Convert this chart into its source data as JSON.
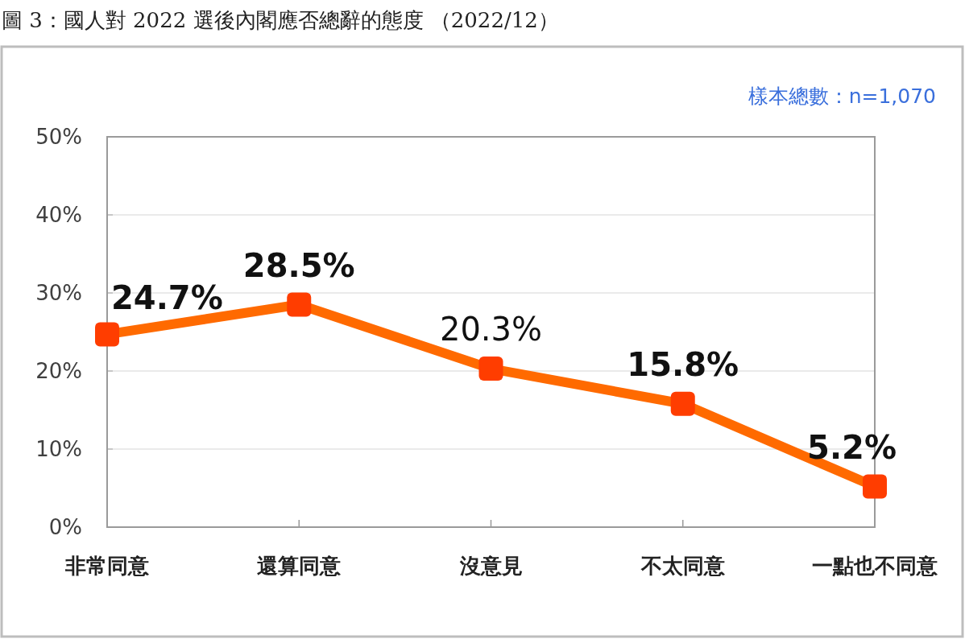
{
  "chart_data": {
    "type": "line",
    "title": "圖 3：國人對 2022 選後內閣應否總辭的態度 （2022/12）",
    "annotations": [
      "樣本總數：n=1,070"
    ],
    "categories": [
      "非常同意",
      "還算同意",
      "沒意見",
      "不太同意",
      "一點也不同意"
    ],
    "series": [
      {
        "color": "#ff6a00",
        "colors": [
          "#ff3d00",
          "#ff3d00",
          "#ff3d00",
          "#ff3d00",
          "#ff3d00"
        ],
        "values": [
          24.7,
          28.5,
          20.3,
          15.8,
          5.2
        ],
        "value_labels": [
          "24.7%",
          "28.5%",
          "20.3%",
          "15.8%",
          "5.2%"
        ]
      }
    ],
    "ylim": [
      0,
      50
    ],
    "yticks": [
      {
        "value": 0,
        "label": "0%"
      },
      {
        "value": 10,
        "label": "10%"
      },
      {
        "value": 20,
        "label": "20%"
      },
      {
        "value": 30,
        "label": "30%"
      },
      {
        "value": 40,
        "label": "40%"
      },
      {
        "value": 50,
        "label": "50%"
      }
    ],
    "grid": "y",
    "marker": "square",
    "line_style": "solid"
  }
}
